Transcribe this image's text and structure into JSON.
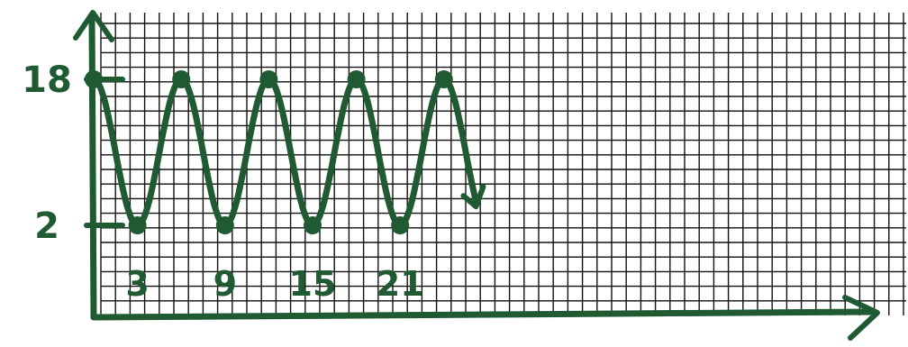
{
  "chart_data": {
    "type": "line",
    "title": "",
    "xlabel": "",
    "ylabel": "",
    "x": [
      0,
      3,
      6,
      9,
      12,
      15,
      18,
      21,
      24
    ],
    "series": [
      {
        "values": [
          18,
          2,
          18,
          2,
          18,
          2,
          18,
          2,
          18
        ]
      }
    ],
    "xlim": [
      0,
      26
    ],
    "ylim": [
      -8,
      25
    ],
    "x_tick_labels": [
      "3",
      "9",
      "15",
      "21"
    ],
    "x_tick_values": [
      3,
      9,
      15,
      21
    ],
    "y_tick_labels": [
      "18",
      "2"
    ],
    "y_tick_values": [
      18,
      2
    ],
    "grid": true,
    "continues_right": true
  },
  "colors": {
    "ink": "#1f5a32",
    "grid": "#111111",
    "background": "#ffffff"
  }
}
